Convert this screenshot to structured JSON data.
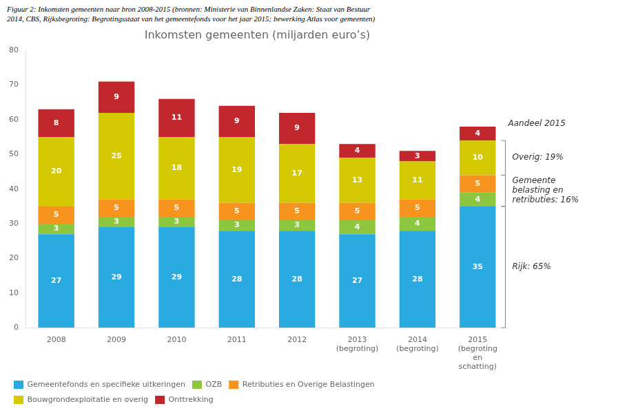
{
  "chart_data": {
    "type": "bar",
    "title": "Inkomsten gemeenten (miljarden euro’s)",
    "subtitle": [
      "Figuur 2: Inkomsten gemeenten naar bron 2008-2015 (bronnen: Ministerie van Binnenlandse Zaken: Staat van Bestuur",
      "2014, CBS, Rijksbegroting: Begrotingsstaat van het gemeentefonds voor het jaar 2015; bewerking Atlas voor gemeenten)"
    ],
    "categories": [
      "2008",
      "2009",
      "2010",
      "2011",
      "2012",
      "2013\n(begroting)",
      "2014\n(begroting)",
      "2015\n(begroting\nen\nschatting)"
    ],
    "series": [
      {
        "name": "Gemeentefonds en specifieke uitkeringen",
        "color": "#29ABE2",
        "values": [
          27,
          29,
          29,
          28,
          28,
          27,
          28,
          35
        ]
      },
      {
        "name": "OZB",
        "color": "#8DC63F",
        "values": [
          3,
          3,
          3,
          3,
          3,
          4,
          4,
          4
        ]
      },
      {
        "name": "Retributies en Overige Belastingen",
        "color": "#F7941D",
        "values": [
          5,
          5,
          5,
          5,
          5,
          5,
          5,
          5
        ]
      },
      {
        "name": "Bouwgrondexploitatie en overig",
        "color": "#D4C900",
        "values": [
          20,
          25,
          18,
          19,
          17,
          13,
          11,
          10
        ]
      },
      {
        "name": "Onttrekking",
        "color": "#C1272D",
        "values": [
          8,
          9,
          11,
          9,
          9,
          4,
          3,
          4
        ]
      }
    ],
    "stacked": true,
    "data_labels": true,
    "ylim": [
      0,
      80
    ],
    "yticks": [
      0,
      10,
      20,
      30,
      40,
      50,
      60,
      70,
      80
    ],
    "grid": false,
    "legend": "bottom",
    "annotations": {
      "title": "Aandeel 2015",
      "brackets": [
        {
          "text": "Overig: 19%",
          "range": [
            44,
            54
          ]
        },
        {
          "text": "Gemeente\nbelasting en\nretributies: 16%",
          "range": [
            35,
            44
          ]
        },
        {
          "text": "Rijk: 65%",
          "range": [
            0,
            35
          ]
        }
      ]
    }
  }
}
